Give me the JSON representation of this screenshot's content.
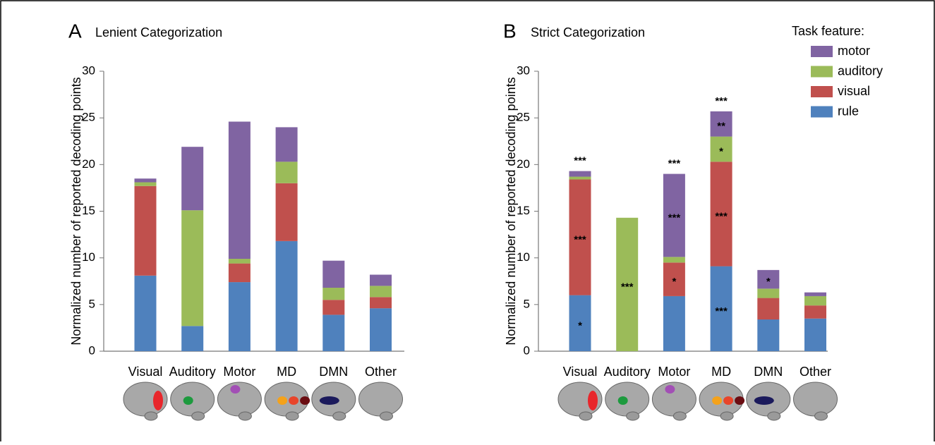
{
  "chart_data": [
    {
      "type": "bar",
      "stacked": true,
      "panel": "A",
      "title": "Lenient Categorization",
      "ylabel": "Normalized number of reported decoding points",
      "categories": [
        "Visual",
        "Auditory",
        "Motor",
        "MD",
        "DMN",
        "Other"
      ],
      "ylim": [
        0,
        30
      ],
      "yticks": [
        0,
        5,
        10,
        15,
        20,
        25,
        30
      ],
      "series": [
        {
          "name": "rule",
          "color": "#4f81bd",
          "values": [
            8.1,
            2.7,
            7.4,
            11.8,
            3.9,
            4.6
          ]
        },
        {
          "name": "visual",
          "color": "#c0504d",
          "values": [
            9.6,
            0,
            2.0,
            6.2,
            1.6,
            1.2
          ]
        },
        {
          "name": "auditory",
          "color": "#9bbb59",
          "values": [
            0.4,
            12.4,
            0.5,
            2.3,
            1.3,
            1.2
          ]
        },
        {
          "name": "motor",
          "color": "#8064a2",
          "values": [
            0.4,
            6.8,
            14.7,
            3.7,
            2.9,
            1.2
          ]
        }
      ]
    },
    {
      "type": "bar",
      "stacked": true,
      "panel": "B",
      "title": "Strict Categorization",
      "ylabel": "Normalized number of reported decoding points",
      "categories": [
        "Visual",
        "Auditory",
        "Motor",
        "MD",
        "DMN",
        "Other"
      ],
      "ylim": [
        0,
        30
      ],
      "yticks": [
        0,
        5,
        10,
        15,
        20,
        25,
        30
      ],
      "legend_title": "Task feature:",
      "legend": "upper right",
      "series": [
        {
          "name": "rule",
          "color": "#4f81bd",
          "values": [
            6.0,
            0,
            5.9,
            9.1,
            3.4,
            3.5
          ],
          "labels": [
            "*",
            null,
            null,
            "***",
            null,
            null
          ]
        },
        {
          "name": "visual",
          "color": "#c0504d",
          "values": [
            12.4,
            0,
            3.6,
            11.2,
            2.3,
            1.4
          ],
          "labels": [
            "***",
            null,
            "*",
            "***",
            null,
            null
          ]
        },
        {
          "name": "auditory",
          "color": "#9bbb59",
          "values": [
            0.3,
            14.3,
            0.6,
            2.7,
            1.0,
            1.0
          ],
          "labels": [
            null,
            "***",
            null,
            "*",
            null,
            null
          ]
        },
        {
          "name": "motor",
          "color": "#8064a2",
          "values": [
            0.6,
            0,
            8.9,
            2.7,
            2.0,
            0.4
          ],
          "labels": [
            null,
            null,
            "***",
            "**",
            "*",
            null
          ]
        }
      ],
      "total_labels": [
        "***",
        null,
        "***",
        "***",
        null,
        null
      ]
    }
  ]
}
